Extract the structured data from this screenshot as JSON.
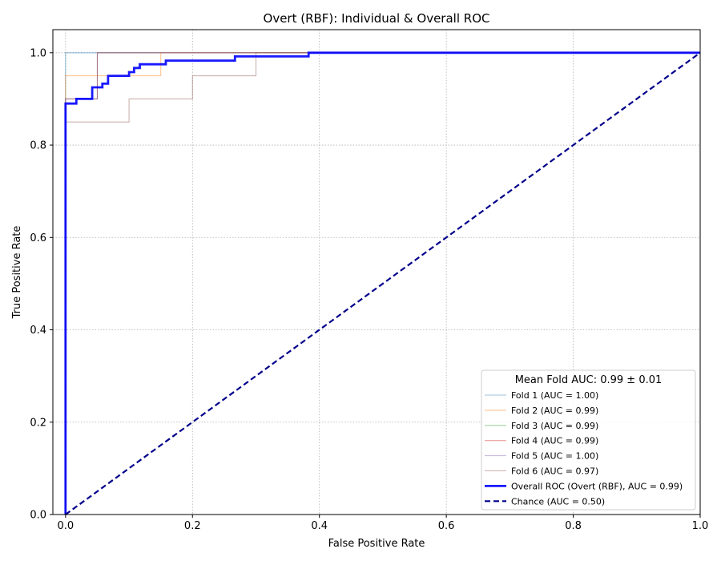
{
  "chart_data": {
    "type": "line",
    "title": "Overt (RBF): Individual & Overall ROC",
    "xlabel": "False Positive Rate",
    "ylabel": "True Positive Rate",
    "xlim": [
      -0.02,
      1.0
    ],
    "ylim": [
      0.0,
      1.05
    ],
    "xticks": [
      "0.0",
      "0.2",
      "0.4",
      "0.6",
      "0.8",
      "1.0"
    ],
    "yticks": [
      "0.0",
      "0.2",
      "0.4",
      "0.6",
      "0.8",
      "1.0"
    ],
    "grid": true,
    "legend_position": "lower-right",
    "legend_title": "Mean Fold AUC: 0.99 ± 0.01",
    "series": [
      {
        "name": "Fold 1 (AUC = 1.00)",
        "color": "#1f77b4",
        "style": "thin",
        "x": [
          0,
          0,
          1
        ],
        "y": [
          0,
          1.0,
          1.0
        ]
      },
      {
        "name": "Fold 2 (AUC = 0.99)",
        "color": "#ff7f0e",
        "style": "thin",
        "x": [
          0,
          0,
          0.15,
          0.15,
          1
        ],
        "y": [
          0,
          0.95,
          0.95,
          1.0,
          1.0
        ]
      },
      {
        "name": "Fold 3 (AUC = 0.99)",
        "color": "#2ca02c",
        "style": "thin",
        "x": [
          0,
          0,
          0.05,
          0.05,
          1
        ],
        "y": [
          0,
          0.9,
          0.9,
          1.0,
          1.0
        ]
      },
      {
        "name": "Fold 4 (AUC = 0.99)",
        "color": "#d62728",
        "style": "thin",
        "x": [
          0,
          0,
          0.05,
          0.05,
          1
        ],
        "y": [
          0,
          0.9,
          0.9,
          1.0,
          1.0
        ]
      },
      {
        "name": "Fold 5 (AUC = 1.00)",
        "color": "#9467bd",
        "style": "thin",
        "x": [
          0,
          0,
          0.05,
          0.05,
          1
        ],
        "y": [
          0,
          0.9,
          0.9,
          1.0,
          1.0
        ]
      },
      {
        "name": "Fold 6 (AUC = 0.97)",
        "color": "#8c564b",
        "style": "thin",
        "x": [
          0,
          0,
          0.1,
          0.1,
          0.2,
          0.2,
          0.3,
          0.3,
          1
        ],
        "y": [
          0,
          0.85,
          0.85,
          0.9,
          0.9,
          0.95,
          0.95,
          1.0,
          1.0
        ]
      },
      {
        "name": "Overall ROC (Overt (RBF), AUC = 0.99)",
        "color": "#0000ff",
        "style": "bold",
        "x": [
          0,
          0,
          0.017,
          0.017,
          0.042,
          0.042,
          0.058,
          0.058,
          0.067,
          0.067,
          0.1,
          0.1,
          0.108,
          0.108,
          0.117,
          0.117,
          0.158,
          0.158,
          0.267,
          0.267,
          0.383,
          0.383,
          1
        ],
        "y": [
          0,
          0.89,
          0.89,
          0.9,
          0.9,
          0.925,
          0.925,
          0.933,
          0.933,
          0.95,
          0.95,
          0.958,
          0.958,
          0.967,
          0.967,
          0.975,
          0.975,
          0.983,
          0.983,
          0.992,
          0.992,
          1.0,
          1.0
        ]
      },
      {
        "name": "Chance (AUC = 0.50)",
        "color": "#00008b",
        "style": "dashed",
        "x": [
          0,
          1
        ],
        "y": [
          0,
          1
        ]
      }
    ]
  }
}
